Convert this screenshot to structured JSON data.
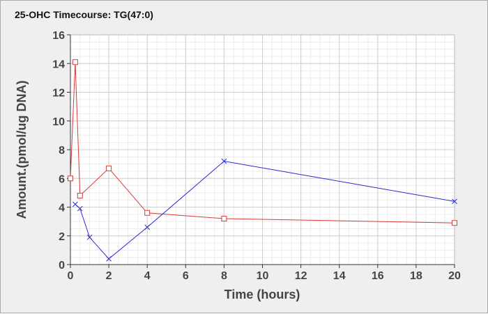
{
  "chart_data": {
    "type": "line",
    "title": "25-OHC Timecourse: TG(47:0)",
    "xlabel": "Time (hours)",
    "ylabel": "Amount.(pmol/ug DNA)",
    "xlim": [
      0,
      20
    ],
    "ylim": [
      0,
      16
    ],
    "x_ticks": [
      0,
      2,
      4,
      6,
      8,
      10,
      12,
      14,
      16,
      18,
      20
    ],
    "y_ticks": [
      0,
      2,
      4,
      6,
      8,
      10,
      12,
      14,
      16
    ],
    "grid": true,
    "legend": "none",
    "series": [
      {
        "color": "#d93a3a",
        "marker": "square",
        "x": [
          0,
          0.25,
          0.5,
          2,
          4,
          8,
          20
        ],
        "y": [
          6.0,
          14.1,
          4.8,
          6.7,
          3.6,
          3.2,
          2.9
        ]
      },
      {
        "color": "#2a2acc",
        "marker": "x",
        "x": [
          0.25,
          0.5,
          1,
          2,
          4,
          8,
          20
        ],
        "y": [
          4.2,
          3.9,
          1.9,
          0.4,
          2.6,
          7.2,
          4.4
        ]
      }
    ]
  }
}
